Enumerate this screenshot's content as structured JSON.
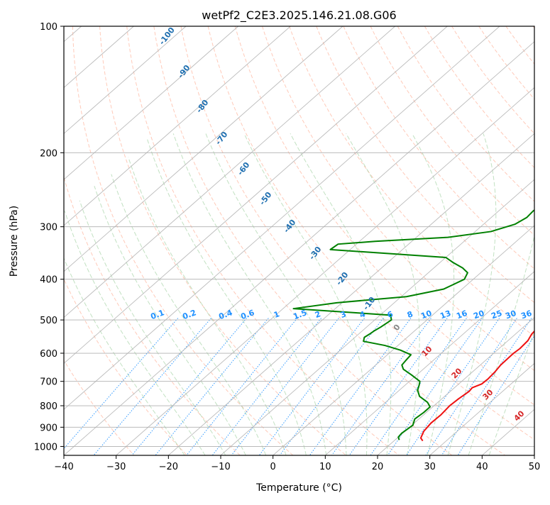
{
  "chart_data": {
    "type": "line",
    "title": "wetPf2_C2E3.2025.146.21.08.G06",
    "xlabel": "Temperature (°C)",
    "ylabel": "Pressure (hPa)",
    "xlim": [
      -40,
      50
    ],
    "ylim": [
      1050,
      100
    ],
    "y_scale": "log",
    "xticks": [
      -40,
      -30,
      -20,
      -10,
      0,
      10,
      20,
      30,
      40,
      50
    ],
    "xtick_labels": [
      "−40",
      "−30",
      "−20",
      "−10",
      "0",
      "10",
      "20",
      "30",
      "40",
      "50"
    ],
    "yticks": [
      100,
      200,
      300,
      400,
      500,
      600,
      700,
      800,
      900,
      1000
    ],
    "ytick_labels": [
      "100",
      "200",
      "300",
      "400",
      "500",
      "600",
      "700",
      "800",
      "900",
      "1000"
    ],
    "grid": true,
    "series": [
      {
        "role": "temperature",
        "color": "#ee1111",
        "points": [
          [
            25.5,
            970
          ],
          [
            24.5,
            955
          ],
          [
            23.6,
            920
          ],
          [
            23.2,
            880
          ],
          [
            23.3,
            840
          ],
          [
            23.0,
            800
          ],
          [
            23.2,
            770
          ],
          [
            23.6,
            740
          ],
          [
            23.4,
            725
          ],
          [
            24.4,
            710
          ],
          [
            24.5,
            690
          ],
          [
            24.3,
            665
          ],
          [
            23.9,
            640
          ],
          [
            23.8,
            600
          ],
          [
            24.0,
            585
          ],
          [
            23.8,
            560
          ],
          [
            23.1,
            540
          ],
          [
            22.9,
            525
          ],
          [
            22.5,
            505
          ],
          [
            22.1,
            490
          ],
          [
            21.8,
            470
          ],
          [
            21.1,
            440
          ],
          [
            20.3,
            410
          ],
          [
            19.6,
            395
          ],
          [
            18.6,
            375
          ],
          [
            17.6,
            360
          ],
          [
            17.4,
            345
          ],
          [
            16.6,
            330
          ],
          [
            15.0,
            310
          ],
          [
            12.7,
            290
          ],
          [
            10.3,
            273
          ],
          [
            7.0,
            251
          ],
          [
            4.3,
            231
          ],
          [
            2.0,
            212
          ],
          [
            0.7,
            196
          ],
          [
            0.0,
            182
          ],
          [
            -0.3,
            168
          ],
          [
            -1.0,
            150
          ],
          [
            -2.0,
            135
          ],
          [
            -2.7,
            125
          ],
          [
            -2.8,
            115
          ],
          [
            -2.0,
            107
          ],
          [
            -0.8,
            100
          ]
        ]
      },
      {
        "role": "dewpoint",
        "color": "#008000",
        "points": [
          [
            20.8,
            965
          ],
          [
            20.0,
            950
          ],
          [
            19.8,
            930
          ],
          [
            20.0,
            910
          ],
          [
            20.2,
            890
          ],
          [
            19.2,
            860
          ],
          [
            19.5,
            830
          ],
          [
            19.5,
            805
          ],
          [
            18.0,
            785
          ],
          [
            15.2,
            760
          ],
          [
            13.5,
            735
          ],
          [
            12.7,
            715
          ],
          [
            12.0,
            700
          ],
          [
            8.9,
            675
          ],
          [
            6.2,
            655
          ],
          [
            5.0,
            640
          ],
          [
            4.7,
            620
          ],
          [
            4.5,
            605
          ],
          [
            1.5,
            590
          ],
          [
            -2.5,
            575
          ],
          [
            -7.5,
            562
          ],
          [
            -8.2,
            550
          ],
          [
            -7.9,
            540
          ],
          [
            -7.7,
            530
          ],
          [
            -7.3,
            520
          ],
          [
            -6.8,
            500
          ],
          [
            -8.0,
            487
          ],
          [
            -28.0,
            470
          ],
          [
            -21.0,
            455
          ],
          [
            -9.0,
            440
          ],
          [
            -3.5,
            422
          ],
          [
            -1.7,
            400
          ],
          [
            -2.5,
            386
          ],
          [
            -4.5,
            376
          ],
          [
            -7.5,
            365
          ],
          [
            -10.0,
            355
          ],
          [
            -33.8,
            340
          ],
          [
            -33.5,
            330
          ],
          [
            -27.0,
            325
          ],
          [
            -14.0,
            318
          ],
          [
            -7.0,
            308
          ],
          [
            -4.0,
            296
          ],
          [
            -3.2,
            285
          ],
          [
            -3.4,
            275
          ],
          [
            -2.4,
            255
          ],
          [
            -2.0,
            240
          ],
          [
            -0.3,
            225
          ],
          [
            0.0,
            212
          ],
          [
            -1.0,
            205
          ],
          [
            -3.5,
            190
          ],
          [
            -4.8,
            175
          ],
          [
            -5.0,
            165
          ],
          [
            -4.5,
            158
          ],
          [
            -2.5,
            150
          ],
          [
            -1.0,
            140
          ],
          [
            -0.5,
            125
          ],
          [
            -0.2,
            112
          ],
          [
            -0.2,
            100
          ]
        ]
      }
    ],
    "dry_adiabat_labels": [
      "-100",
      "-90",
      "-80",
      "-70",
      "-60",
      "-50",
      "-40",
      "-30",
      "-20",
      "-10",
      "0",
      "10",
      "20",
      "30",
      "40"
    ],
    "mixing_ratio_labels": [
      "0.1",
      "0.2",
      "0.4",
      "0.6",
      "1",
      "1.5",
      "2",
      "3",
      "4",
      "6",
      "8",
      "10",
      "13",
      "16",
      "20",
      "25",
      "30",
      "36"
    ],
    "colors": {
      "grid": "#b0b0b0",
      "isotherm": "#bbbbbb",
      "dry_adiabat": "#ff9f80",
      "moist_adiabat": "#8fc98f",
      "mixing_ratio": "#1e90ff",
      "dry_label": "#1f6fb0",
      "warm_label": "#d62728",
      "mixing_label": "#1e90ff",
      "zero_label": "#888888"
    }
  }
}
